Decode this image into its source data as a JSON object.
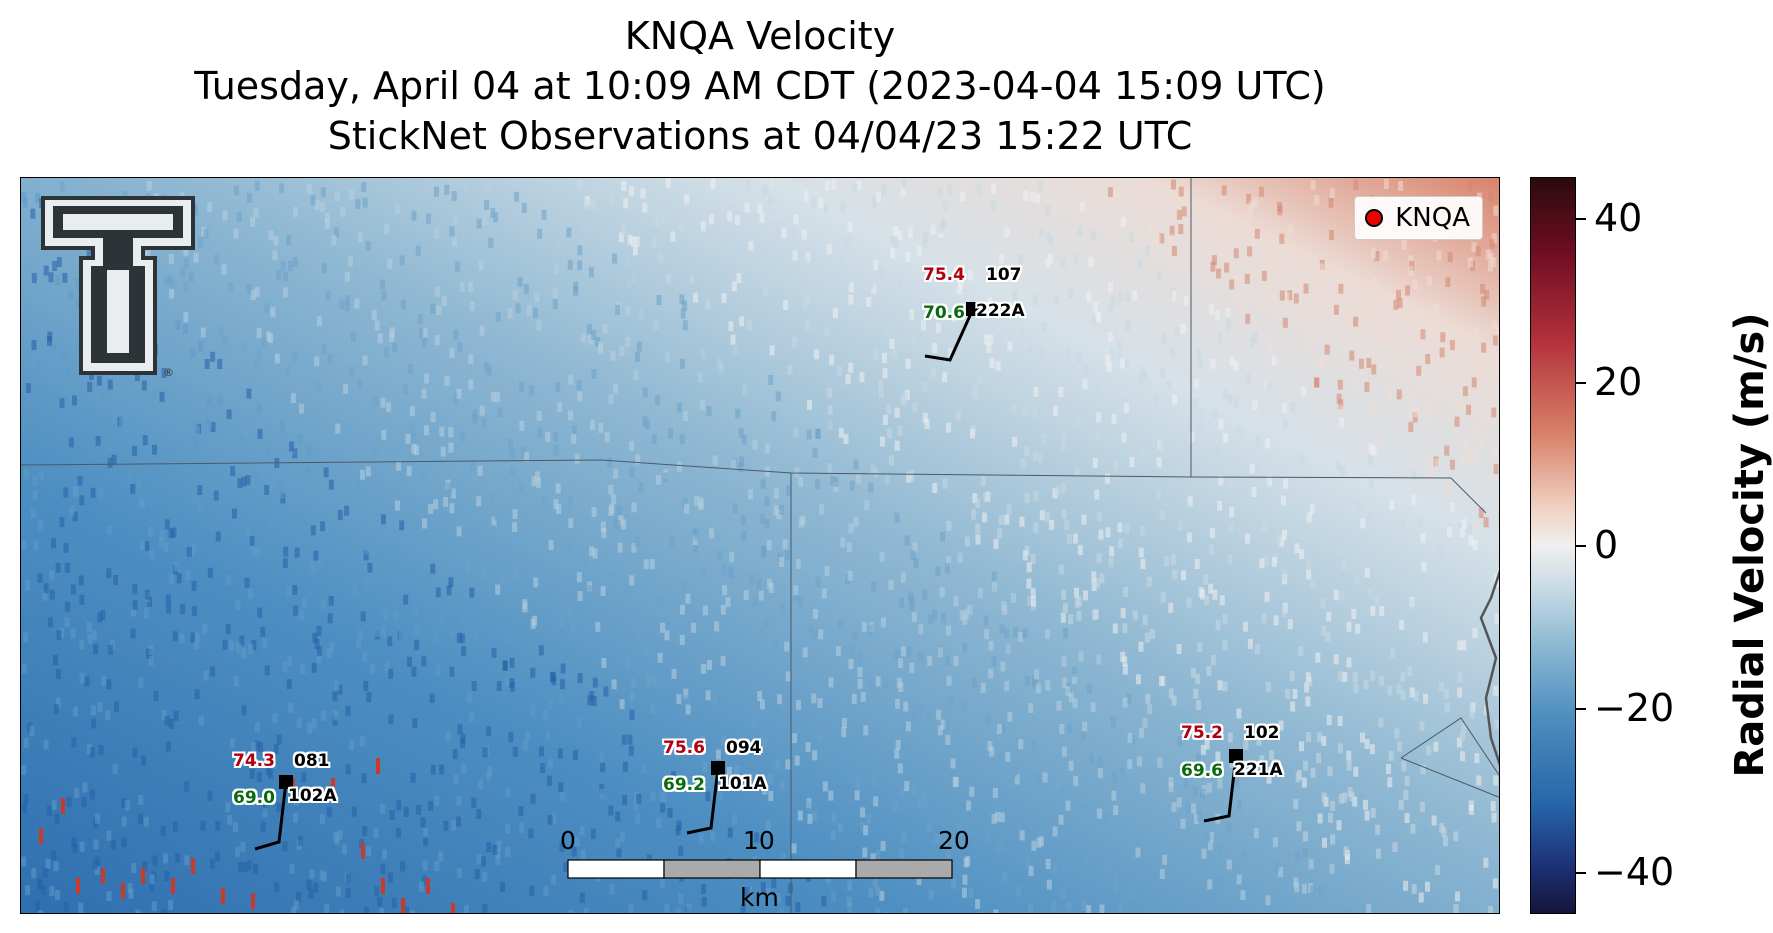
{
  "title": {
    "line1": "KNQA Velocity",
    "line2": "Tuesday, April 04 at 10:09 AM CDT (2023-04-04 15:09 UTC)",
    "line3": "StickNet Observations at 04/04/23 15:22 UTC"
  },
  "legend": {
    "label": "KNQA",
    "marker_color": "#ff0000"
  },
  "logo": {
    "name": "texas-tech-double-t-logo",
    "registered_mark": "®"
  },
  "stations": [
    {
      "id": "222A",
      "temp": "75.4",
      "dew": "70.6",
      "pressure": "107"
    },
    {
      "id": "102A",
      "temp": "74.3",
      "dew": "69.0",
      "pressure": "081"
    },
    {
      "id": "101A",
      "temp": "75.6",
      "dew": "69.2",
      "pressure": "094"
    },
    {
      "id": "221A",
      "temp": "75.2",
      "dew": "69.6",
      "pressure": "102"
    }
  ],
  "scalebar": {
    "labels": [
      "0",
      "10",
      "20"
    ],
    "unit": "km"
  },
  "colorbar": {
    "title": "Radial Velocity (m/s)",
    "ticks": [
      "40",
      "20",
      "0",
      "−20",
      "−40"
    ],
    "range": [
      -45,
      45
    ],
    "colors": {
      "high": "#2a0a0e",
      "zero": "#efefef",
      "low": "#141638"
    }
  }
}
